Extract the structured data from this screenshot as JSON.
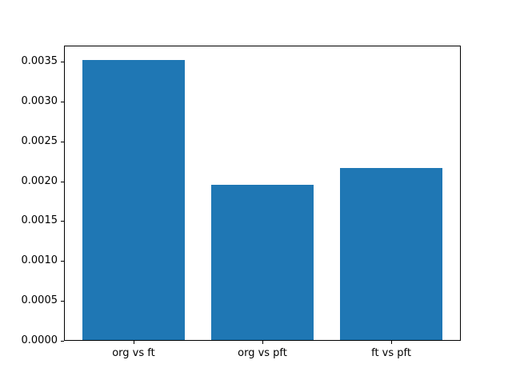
{
  "figure": {
    "background": "#ffffff",
    "spine_color": "#000000"
  },
  "chart_data": {
    "type": "bar",
    "title": "",
    "xlabel": "",
    "ylabel": "",
    "categories": [
      "org vs ft",
      "org vs pft",
      "ft vs pft"
    ],
    "values": [
      0.00352,
      0.00196,
      0.00217
    ],
    "bar_color": "#1f77b4",
    "x_positions": [
      0,
      1,
      2
    ],
    "xlim": [
      -0.54,
      2.54
    ],
    "ylim": [
      0,
      0.0037
    ],
    "bar_width_data_units": 0.8,
    "yticks": [
      0.0,
      0.0005,
      0.001,
      0.0015,
      0.002,
      0.0025,
      0.003,
      0.0035
    ],
    "ytick_labels": [
      "0.0000",
      "0.0005",
      "0.0010",
      "0.0015",
      "0.0020",
      "0.0025",
      "0.0030",
      "0.0035"
    ],
    "grid": false,
    "legend": null
  }
}
